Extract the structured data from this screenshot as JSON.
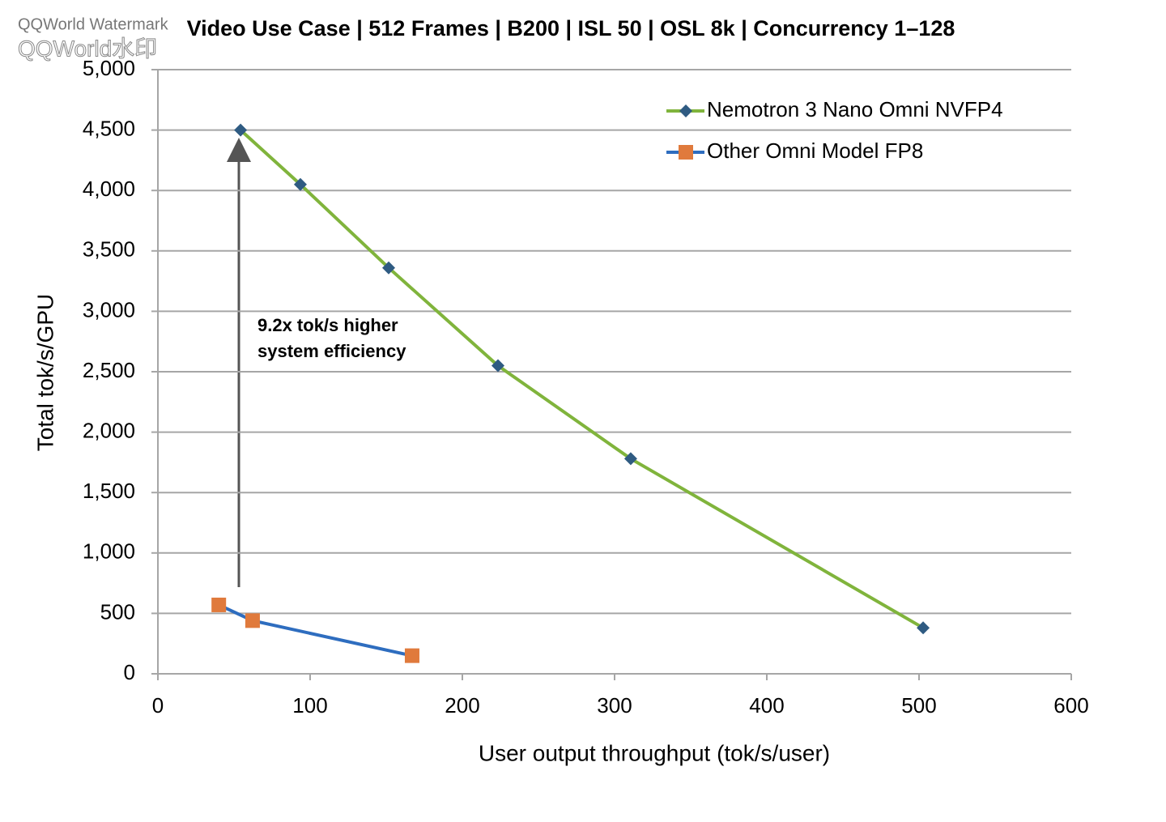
{
  "chart_data": {
    "type": "line",
    "title": "Video Use Case | 512 Frames  | B200 | ISL 50 | OSL 8k | Concurrency 1–128",
    "watermark": [
      "QQWorld Watermark",
      "QQWorld水印"
    ],
    "x_label": "User output throughput (tok/s/user)",
    "y_label": "Total tok/s/GPU",
    "annotation": [
      "9.2x tok/s higher",
      "system efficiency"
    ],
    "xlim": [
      0,
      600
    ],
    "xticks": [
      0,
      100,
      200,
      300,
      400,
      500,
      600
    ],
    "ylim": [
      0,
      5000
    ],
    "yticks": [
      0,
      500,
      {
        "value": 1000,
        "label": "1,000"
      },
      {
        "value": 1500,
        "label": "1,500"
      },
      {
        "value": 2000,
        "label": "2,000"
      },
      {
        "value": 2500,
        "label": "2,500"
      },
      {
        "value": 3000,
        "label": "3,000"
      },
      {
        "value": 3500,
        "label": "3,500"
      },
      {
        "value": 4000,
        "label": "4,000"
      },
      {
        "value": 4500,
        "label": "4,500"
      },
      {
        "value": 5000,
        "label": "5,000"
      }
    ],
    "grid": true,
    "legend": "upper right",
    "series": [
      {
        "name": "Nemotron 3 Nano Omni NVFP4",
        "color": "#80b43c",
        "marker": "diamond",
        "marker_color": "#2f5b82",
        "x": [
          54.3,
          93.6,
          151.6,
          223.4,
          310.6,
          502.7
        ],
        "values": [
          4500,
          4050,
          3360,
          2550,
          1780,
          380
        ]
      },
      {
        "name": "Other Omni Model FP8",
        "color": "#2e6dbf",
        "marker": "square",
        "marker_color": "#e07a3c",
        "x": [
          40,
          62.2,
          167
        ],
        "values": [
          570,
          440,
          150
        ]
      }
    ]
  }
}
